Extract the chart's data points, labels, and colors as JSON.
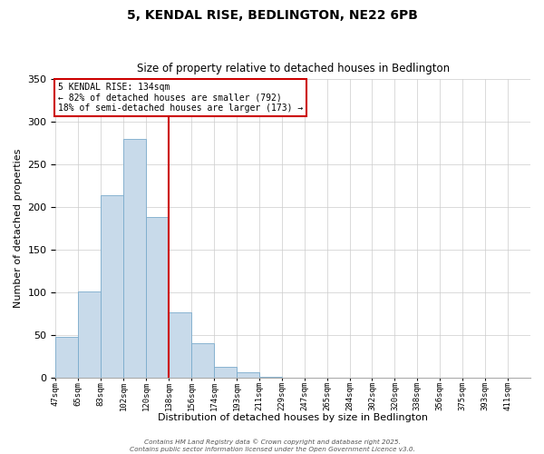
{
  "title": "5, KENDAL RISE, BEDLINGTON, NE22 6PB",
  "subtitle": "Size of property relative to detached houses in Bedlington",
  "xlabel": "Distribution of detached houses by size in Bedlington",
  "ylabel": "Number of detached properties",
  "bin_labels": [
    "47sqm",
    "65sqm",
    "83sqm",
    "102sqm",
    "120sqm",
    "138sqm",
    "156sqm",
    "174sqm",
    "193sqm",
    "211sqm",
    "229sqm",
    "247sqm",
    "265sqm",
    "284sqm",
    "302sqm",
    "320sqm",
    "338sqm",
    "356sqm",
    "375sqm",
    "393sqm",
    "411sqm"
  ],
  "bar_heights": [
    48,
    101,
    214,
    280,
    188,
    77,
    40,
    13,
    6,
    1,
    0,
    0,
    0,
    0,
    0,
    0,
    0,
    0,
    0,
    0,
    0
  ],
  "bar_color": "#c8daea",
  "bar_edge_color": "#7aabcc",
  "vline_x": 5,
  "vline_color": "#cc0000",
  "ylim": [
    0,
    350
  ],
  "yticks": [
    0,
    50,
    100,
    150,
    200,
    250,
    300,
    350
  ],
  "annotation_title": "5 KENDAL RISE: 134sqm",
  "annotation_line1": "← 82% of detached houses are smaller (792)",
  "annotation_line2": "18% of semi-detached houses are larger (173) →",
  "annotation_box_color": "#ffffff",
  "annotation_box_edge": "#cc0000",
  "footer_line1": "Contains HM Land Registry data © Crown copyright and database right 2025.",
  "footer_line2": "Contains public sector information licensed under the Open Government Licence v3.0.",
  "background_color": "#ffffff",
  "grid_color": "#cccccc"
}
